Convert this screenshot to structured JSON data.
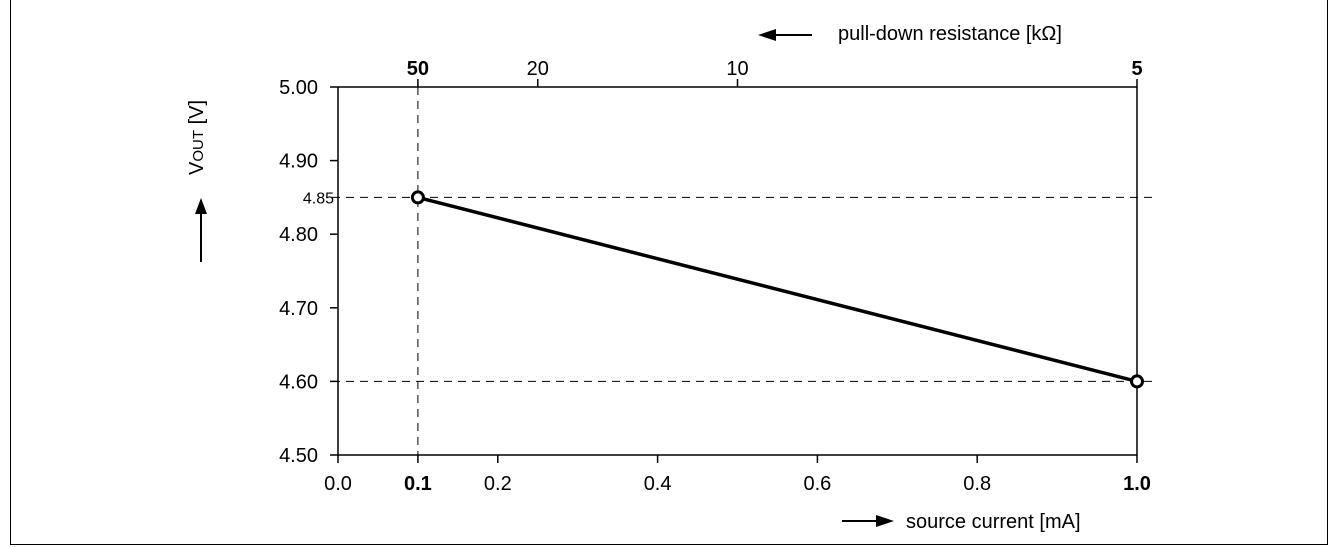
{
  "chart_data": {
    "type": "line",
    "x_axis": {
      "label": "source current",
      "unit": "[mA]",
      "range": [
        0.0,
        1.0
      ],
      "ticks": [
        "0.0",
        "0.1",
        "0.2",
        "0.4",
        "0.6",
        "0.8",
        "1.0"
      ],
      "tick_values": [
        0.0,
        0.1,
        0.2,
        0.4,
        0.6,
        0.8,
        1.0
      ],
      "bold_ticks": [
        "0.1",
        "1.0"
      ]
    },
    "y_axis": {
      "label": "V",
      "label_subscript": "OUT",
      "unit": "[V]",
      "range": [
        4.5,
        5.0
      ],
      "ticks": [
        "4.50",
        "4.60",
        "4.70",
        "4.80",
        "4.90",
        "5.00"
      ],
      "tick_values": [
        4.5,
        4.6,
        4.7,
        4.8,
        4.9,
        5.0
      ]
    },
    "top_axis": {
      "label": "pull-down resistance [kΩ]",
      "ticks": [
        "50",
        "20",
        "10",
        "5"
      ],
      "tick_values": [
        50,
        20,
        10,
        5
      ],
      "bold_ticks": [
        "50",
        "5"
      ]
    },
    "series": [
      {
        "points": [
          {
            "x": 0.1,
            "y": 4.85
          },
          {
            "x": 1.0,
            "y": 4.6
          }
        ]
      }
    ],
    "annotations": {
      "extra_y_label": "4.85",
      "reference_lines": [
        {
          "axis": "y",
          "value": 4.85
        },
        {
          "axis": "y",
          "value": 4.6
        },
        {
          "axis": "x",
          "value": 0.1
        }
      ]
    },
    "grid": false
  }
}
